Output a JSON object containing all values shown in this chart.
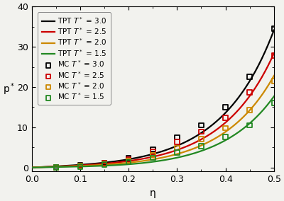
{
  "xlabel": "η",
  "ylabel": "p*",
  "xlim": [
    0,
    0.5
  ],
  "ylim": [
    -1,
    40
  ],
  "yticks": [
    0,
    10,
    20,
    30,
    40
  ],
  "xticks": [
    0,
    0.1,
    0.2,
    0.3,
    0.4,
    0.5
  ],
  "colors": {
    "T30": "#000000",
    "T25": "#cc0000",
    "T20": "#cc8800",
    "T15": "#228822"
  },
  "mc_eta": [
    0.05,
    0.1,
    0.15,
    0.2,
    0.25,
    0.3,
    0.35,
    0.4,
    0.45,
    0.5
  ],
  "mc_T30": [
    0.12,
    0.55,
    1.2,
    2.3,
    4.5,
    7.5,
    10.5,
    15.0,
    22.5,
    34.5
  ],
  "mc_T25": [
    0.05,
    0.5,
    1.1,
    2.0,
    3.9,
    6.4,
    8.9,
    12.3,
    18.7,
    27.8
  ],
  "mc_T20": [
    0.0,
    0.35,
    0.9,
    1.7,
    3.1,
    4.9,
    7.1,
    9.8,
    14.3,
    21.5
  ],
  "mc_T15": [
    0.0,
    0.25,
    0.7,
    1.4,
    2.4,
    3.7,
    5.3,
    7.6,
    10.5,
    16.0
  ],
  "background_color": "#f2f2ee",
  "legend_fontsize": 7.5,
  "axis_fontsize": 10,
  "tick_fontsize": 9,
  "linewidth": 1.6,
  "marker_size": 22,
  "marker_linewidth": 1.3
}
